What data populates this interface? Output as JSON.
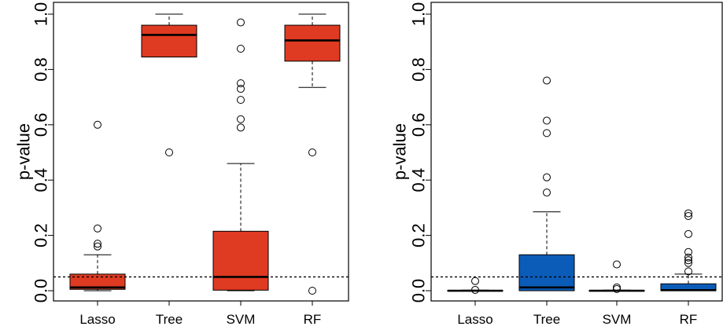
{
  "chart_data": [
    {
      "type": "box",
      "ylabel": "p-value",
      "xlabel": "",
      "ylim": [
        0.0,
        1.0
      ],
      "yticks": [
        "0.0",
        "0.2",
        "0.4",
        "0.6",
        "0.8",
        "1.0"
      ],
      "categories": [
        "Lasso",
        "Tree",
        "SVM",
        "RF"
      ],
      "fill_color": "#df3a22",
      "reference_line": 0.05,
      "boxes": [
        {
          "min": 0.0,
          "q1": 0.005,
          "median": 0.012,
          "q3": 0.06,
          "max": 0.13,
          "outliers": [
            0.6,
            0.225,
            0.17,
            0.16
          ]
        },
        {
          "min": 0.845,
          "q1": 0.845,
          "median": 0.925,
          "q3": 0.96,
          "max": 1.0,
          "outliers": [
            0.5
          ]
        },
        {
          "min": 0.0,
          "q1": 0.002,
          "median": 0.05,
          "q3": 0.215,
          "max": 0.46,
          "outliers": [
            0.97,
            0.875,
            0.75,
            0.73,
            0.69,
            0.62,
            0.59
          ]
        },
        {
          "min": 0.735,
          "q1": 0.83,
          "median": 0.905,
          "q3": 0.96,
          "max": 1.0,
          "outliers": [
            0.5,
            0.0
          ]
        }
      ]
    },
    {
      "type": "box",
      "ylabel": "p-value",
      "xlabel": "",
      "ylim": [
        0.0,
        1.0
      ],
      "yticks": [
        "0.0",
        "0.2",
        "0.4",
        "0.6",
        "0.8",
        "1.0"
      ],
      "categories": [
        "Lasso",
        "Tree",
        "SVM",
        "RF"
      ],
      "fill_color": "#0b5cb8",
      "reference_line": 0.05,
      "boxes": [
        {
          "min": 0.0,
          "q1": 0.0,
          "median": 0.0,
          "q3": 0.001,
          "max": 0.002,
          "outliers": [
            0.035,
            0.003
          ]
        },
        {
          "min": 0.0,
          "q1": 0.0,
          "median": 0.012,
          "q3": 0.13,
          "max": 0.285,
          "outliers": [
            0.76,
            0.615,
            0.57,
            0.41,
            0.355
          ]
        },
        {
          "min": 0.0,
          "q1": 0.0,
          "median": 0.0,
          "q3": 0.001,
          "max": 0.002,
          "outliers": [
            0.095,
            0.012,
            0.006
          ]
        },
        {
          "min": 0.0,
          "q1": 0.0,
          "median": 0.002,
          "q3": 0.025,
          "max": 0.06,
          "outliers": [
            0.28,
            0.27,
            0.205,
            0.14,
            0.12,
            0.11,
            0.1,
            0.07
          ]
        }
      ]
    }
  ]
}
